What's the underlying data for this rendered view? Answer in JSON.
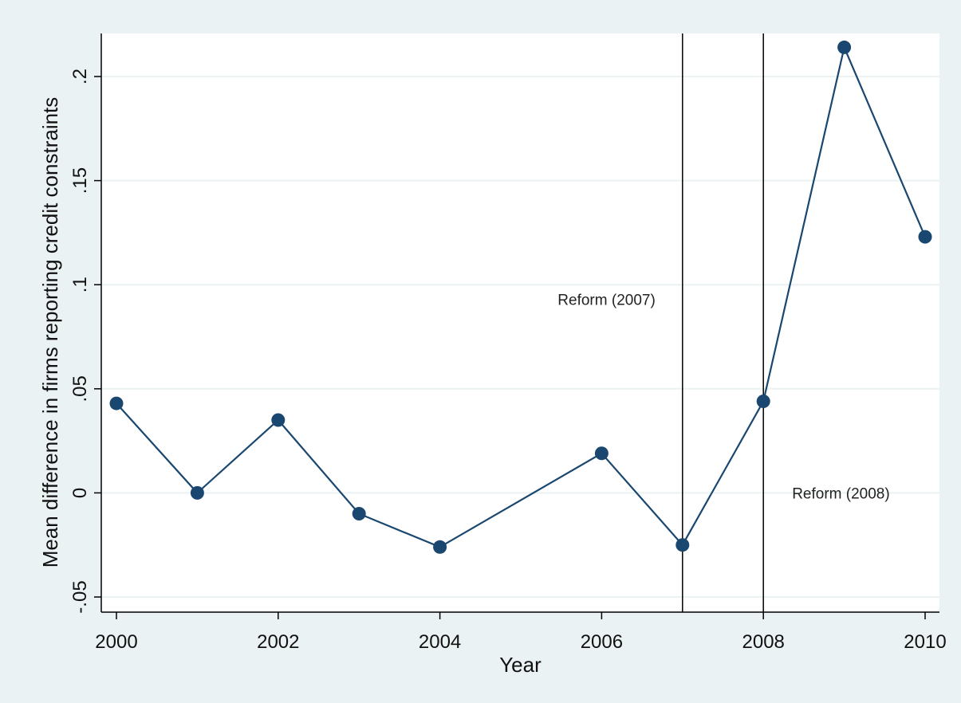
{
  "chart_data": {
    "type": "line",
    "title": "",
    "xlabel": "Year",
    "ylabel": "Mean difference in firms reporting credit constraints",
    "x": [
      2000,
      2001,
      2002,
      2003,
      2004,
      2006,
      2007,
      2008,
      2009,
      2010
    ],
    "series": [
      {
        "values": [
          0.043,
          0.0,
          0.035,
          -0.01,
          -0.026,
          0.019,
          -0.025,
          0.044,
          0.214,
          0.123
        ]
      }
    ],
    "xlim": [
      2000,
      2010
    ],
    "ylim": [
      -0.05,
      0.2
    ],
    "xticks": [
      2000,
      2002,
      2004,
      2006,
      2008,
      2010
    ],
    "xtick_labels": [
      "2000",
      "2002",
      "2004",
      "2006",
      "2008",
      "2010"
    ],
    "yticks": [
      -0.05,
      0,
      0.05,
      0.1,
      0.15,
      0.2
    ],
    "ytick_labels": [
      "-.05",
      "0",
      ".05",
      ".1",
      ".15",
      ".2"
    ],
    "vlines": [
      {
        "x": 2007,
        "label": "Reform (2007)",
        "label_y": 0.093
      },
      {
        "x": 2008,
        "label": "Reform (2008)",
        "label_y": 0.0
      }
    ],
    "grid": true,
    "colors": {
      "background_outer": "#eaf2f3",
      "plot_background": "#ffffff",
      "grid": "#eaf2f3",
      "series": "#1a476f",
      "vline": "#000000"
    }
  }
}
